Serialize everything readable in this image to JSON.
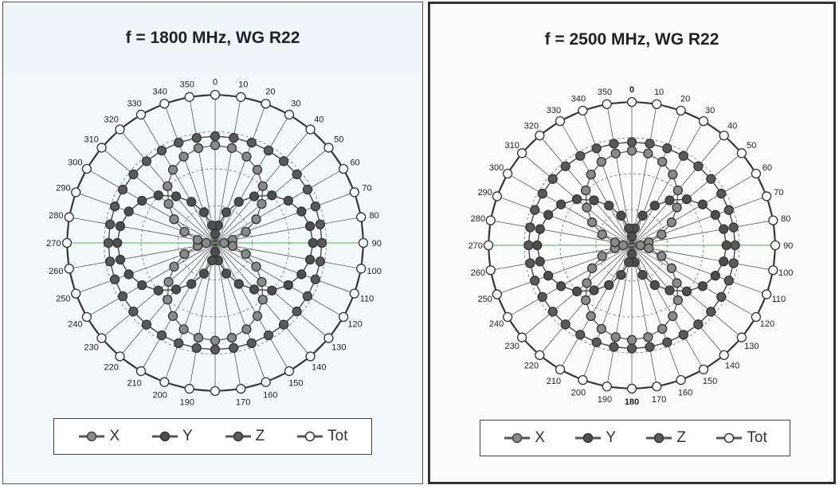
{
  "colors": {
    "x": "#8a8a8a",
    "y": "#4e4e4e",
    "z": "#5a5a5a",
    "tot": "#ffffff",
    "grid": "#444444",
    "axis_green": "#6fbf6f"
  },
  "legend": {
    "x": "X",
    "y": "Y",
    "z": "Z",
    "tot": "Tot"
  },
  "chart_data": [
    {
      "type": "polar-line",
      "title": "f = 1800 MHz, WG R22",
      "angle_ticks": [
        "0",
        "10",
        "20",
        "30",
        "40",
        "50",
        "60",
        "70",
        "80",
        "90",
        "100",
        "110",
        "120",
        "130",
        "140",
        "150",
        "160",
        "170",
        "180",
        "190",
        "200",
        "210",
        "220",
        "230",
        "240",
        "250",
        "260",
        "270",
        "280",
        "290",
        "300",
        "310",
        "320",
        "330",
        "340",
        "350"
      ],
      "angle_labels_shown": [
        "0",
        "10",
        "20",
        "30",
        "40",
        "50",
        "60",
        "70",
        "80",
        "90",
        "100",
        "110",
        "120",
        "130",
        "140",
        "150",
        "160",
        "170",
        "190",
        "200",
        "210",
        "220",
        "230",
        "240",
        "250",
        "260",
        "270",
        "280",
        "290",
        "300",
        "310",
        "320",
        "330",
        "340",
        "350"
      ],
      "series": [
        {
          "name": "X",
          "angles_deg": [
            0,
            10,
            20,
            30,
            40,
            50,
            60,
            70,
            80,
            90,
            100,
            110,
            120,
            130,
            140,
            150,
            160,
            170,
            180,
            190,
            200,
            210,
            220,
            230,
            240,
            250,
            260,
            270,
            280,
            290,
            300,
            310,
            320,
            330,
            340,
            350
          ],
          "values": [
            0.66,
            0.65,
            0.62,
            0.57,
            0.5,
            0.41,
            0.32,
            0.22,
            0.12,
            0.06,
            0.12,
            0.22,
            0.32,
            0.41,
            0.5,
            0.57,
            0.62,
            0.65,
            0.66,
            0.65,
            0.62,
            0.57,
            0.5,
            0.41,
            0.32,
            0.22,
            0.12,
            0.06,
            0.12,
            0.22,
            0.32,
            0.41,
            0.5,
            0.57,
            0.62,
            0.65
          ]
        },
        {
          "name": "Y",
          "angles_deg": [
            0,
            10,
            20,
            30,
            40,
            50,
            60,
            70,
            80,
            90,
            100,
            110,
            120,
            130,
            140,
            150,
            160,
            170,
            180,
            190,
            200,
            210,
            220,
            230,
            240,
            250,
            260,
            270,
            280,
            290,
            300,
            310,
            320,
            330,
            340,
            350
          ],
          "values": [
            0.06,
            0.12,
            0.22,
            0.32,
            0.41,
            0.5,
            0.57,
            0.62,
            0.65,
            0.66,
            0.65,
            0.62,
            0.57,
            0.5,
            0.41,
            0.32,
            0.22,
            0.12,
            0.06,
            0.12,
            0.22,
            0.32,
            0.41,
            0.5,
            0.57,
            0.62,
            0.65,
            0.66,
            0.65,
            0.62,
            0.57,
            0.5,
            0.41,
            0.32,
            0.22,
            0.12
          ]
        },
        {
          "name": "Z",
          "angles_deg": [
            0,
            10,
            20,
            30,
            40,
            50,
            60,
            70,
            80,
            90,
            100,
            110,
            120,
            130,
            140,
            150,
            160,
            170,
            180,
            190,
            200,
            210,
            220,
            230,
            240,
            250,
            260,
            270,
            280,
            290,
            300,
            310,
            320,
            330,
            340,
            350
          ],
          "values": [
            0.72,
            0.72,
            0.72,
            0.72,
            0.72,
            0.72,
            0.72,
            0.72,
            0.72,
            0.72,
            0.72,
            0.72,
            0.72,
            0.72,
            0.72,
            0.72,
            0.72,
            0.72,
            0.72,
            0.72,
            0.72,
            0.72,
            0.72,
            0.72,
            0.72,
            0.72,
            0.72,
            0.72,
            0.72,
            0.72,
            0.72,
            0.72,
            0.72,
            0.72,
            0.72,
            0.72
          ]
        },
        {
          "name": "Tot",
          "angles_deg": [
            0,
            10,
            20,
            30,
            40,
            50,
            60,
            70,
            80,
            90,
            100,
            110,
            120,
            130,
            140,
            150,
            160,
            170,
            180,
            190,
            200,
            210,
            220,
            230,
            240,
            250,
            260,
            270,
            280,
            290,
            300,
            310,
            320,
            330,
            340,
            350
          ],
          "values": [
            1,
            1,
            1,
            1,
            1,
            1,
            1,
            1,
            1,
            1,
            1,
            1,
            1,
            1,
            1,
            1,
            1,
            1,
            1,
            1,
            1,
            1,
            1,
            1,
            1,
            1,
            1,
            1,
            1,
            1,
            1,
            1,
            1,
            1,
            1,
            1
          ]
        }
      ],
      "grid": true,
      "legend_position": "bottom"
    },
    {
      "type": "polar-line",
      "title": "f = 2500 MHz, WG R22",
      "angle_ticks": [
        "0",
        "10",
        "20",
        "30",
        "40",
        "50",
        "60",
        "70",
        "80",
        "90",
        "100",
        "110",
        "120",
        "130",
        "140",
        "150",
        "160",
        "170",
        "180",
        "190",
        "200",
        "210",
        "220",
        "230",
        "240",
        "250",
        "260",
        "270",
        "280",
        "290",
        "300",
        "310",
        "320",
        "330",
        "340",
        "350"
      ],
      "angle_labels_shown": [
        "0",
        "10",
        "20",
        "30",
        "40",
        "50",
        "60",
        "70",
        "80",
        "90",
        "100",
        "110",
        "120",
        "130",
        "140",
        "150",
        "160",
        "170",
        "180",
        "190",
        "200",
        "210",
        "220",
        "230",
        "240",
        "250",
        "260",
        "270",
        "280",
        "290",
        "300",
        "310",
        "320",
        "330",
        "340",
        "350"
      ],
      "series": [
        {
          "name": "X",
          "angles_deg": [
            0,
            10,
            20,
            30,
            40,
            50,
            60,
            70,
            80,
            90,
            100,
            110,
            120,
            130,
            140,
            150,
            160,
            170,
            180,
            190,
            200,
            210,
            220,
            230,
            240,
            250,
            260,
            270,
            280,
            290,
            300,
            310,
            320,
            330,
            340,
            350
          ],
          "values": [
            0.66,
            0.65,
            0.62,
            0.57,
            0.5,
            0.41,
            0.32,
            0.22,
            0.12,
            0.06,
            0.12,
            0.22,
            0.32,
            0.41,
            0.5,
            0.57,
            0.62,
            0.65,
            0.66,
            0.65,
            0.62,
            0.57,
            0.5,
            0.41,
            0.32,
            0.22,
            0.12,
            0.06,
            0.12,
            0.22,
            0.32,
            0.41,
            0.5,
            0.57,
            0.62,
            0.65
          ]
        },
        {
          "name": "Y",
          "angles_deg": [
            0,
            10,
            20,
            30,
            40,
            50,
            60,
            70,
            80,
            90,
            100,
            110,
            120,
            130,
            140,
            150,
            160,
            170,
            180,
            190,
            200,
            210,
            220,
            230,
            240,
            250,
            260,
            270,
            280,
            290,
            300,
            310,
            320,
            330,
            340,
            350
          ],
          "values": [
            0.06,
            0.12,
            0.22,
            0.32,
            0.41,
            0.5,
            0.57,
            0.62,
            0.65,
            0.66,
            0.65,
            0.62,
            0.57,
            0.5,
            0.41,
            0.32,
            0.22,
            0.12,
            0.06,
            0.12,
            0.22,
            0.32,
            0.41,
            0.5,
            0.57,
            0.62,
            0.65,
            0.66,
            0.65,
            0.62,
            0.57,
            0.5,
            0.41,
            0.32,
            0.22,
            0.12
          ]
        },
        {
          "name": "Z",
          "angles_deg": [
            0,
            10,
            20,
            30,
            40,
            50,
            60,
            70,
            80,
            90,
            100,
            110,
            120,
            130,
            140,
            150,
            160,
            170,
            180,
            190,
            200,
            210,
            220,
            230,
            240,
            250,
            260,
            270,
            280,
            290,
            300,
            310,
            320,
            330,
            340,
            350
          ],
          "values": [
            0.72,
            0.72,
            0.72,
            0.72,
            0.72,
            0.72,
            0.72,
            0.72,
            0.72,
            0.72,
            0.72,
            0.72,
            0.72,
            0.72,
            0.72,
            0.72,
            0.72,
            0.72,
            0.72,
            0.72,
            0.72,
            0.72,
            0.72,
            0.72,
            0.72,
            0.72,
            0.72,
            0.72,
            0.72,
            0.72,
            0.72,
            0.72,
            0.72,
            0.72,
            0.72,
            0.72
          ]
        },
        {
          "name": "Tot",
          "angles_deg": [
            0,
            10,
            20,
            30,
            40,
            50,
            60,
            70,
            80,
            90,
            100,
            110,
            120,
            130,
            140,
            150,
            160,
            170,
            180,
            190,
            200,
            210,
            220,
            230,
            240,
            250,
            260,
            270,
            280,
            290,
            300,
            310,
            320,
            330,
            340,
            350
          ],
          "values": [
            1,
            1,
            1,
            1,
            1,
            1,
            1,
            1,
            1,
            1,
            1,
            1,
            1,
            1,
            1,
            1,
            1,
            1,
            1,
            1,
            1,
            1,
            1,
            1,
            1,
            1,
            1,
            1,
            1,
            1,
            1,
            1,
            1,
            1,
            1,
            1
          ]
        }
      ],
      "grid": true,
      "legend_position": "bottom"
    }
  ]
}
